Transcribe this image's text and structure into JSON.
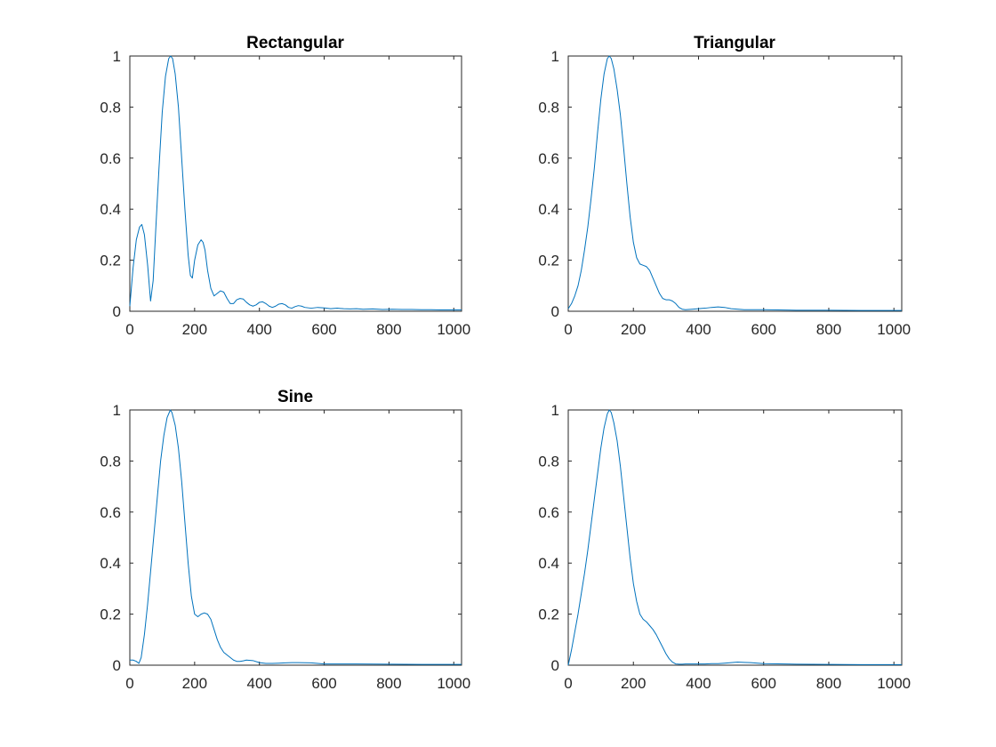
{
  "figure": {
    "background": "#ffffff",
    "line_color": "#0072BD",
    "axis_color": "#262626"
  },
  "chart_data": [
    {
      "type": "line",
      "title": "Rectangular",
      "xlim": [
        0,
        1024
      ],
      "ylim": [
        0,
        1
      ],
      "xticks": [
        0,
        200,
        400,
        600,
        800,
        1000
      ],
      "yticks": [
        0,
        0.2,
        0.4,
        0.6,
        0.8,
        1
      ],
      "xtick_labels": [
        "0",
        "200",
        "400",
        "600",
        "800",
        "1000"
      ],
      "ytick_labels": [
        "0",
        "0.2",
        "0.4",
        "0.6",
        "0.8",
        "1"
      ],
      "grid": false,
      "series": [
        {
          "x": [
            0,
            10,
            20,
            30,
            37,
            45,
            55,
            64,
            72,
            80,
            90,
            100,
            110,
            120,
            126,
            132,
            140,
            150,
            160,
            170,
            180,
            187,
            193,
            200,
            210,
            220,
            226,
            232,
            240,
            250,
            260,
            270,
            280,
            290,
            300,
            310,
            320,
            330,
            340,
            350,
            360,
            370,
            380,
            390,
            400,
            410,
            420,
            430,
            440,
            450,
            460,
            470,
            480,
            490,
            500,
            510,
            520,
            530,
            540,
            560,
            580,
            600,
            620,
            640,
            660,
            680,
            700,
            720,
            750,
            780,
            810,
            840,
            870,
            900,
            930,
            960,
            990,
            1024
          ],
          "y": [
            0.02,
            0.17,
            0.28,
            0.33,
            0.34,
            0.3,
            0.18,
            0.04,
            0.12,
            0.32,
            0.56,
            0.78,
            0.92,
            0.99,
            1.0,
            0.99,
            0.93,
            0.8,
            0.6,
            0.4,
            0.22,
            0.14,
            0.13,
            0.2,
            0.26,
            0.28,
            0.27,
            0.24,
            0.16,
            0.09,
            0.06,
            0.07,
            0.08,
            0.075,
            0.05,
            0.03,
            0.03,
            0.045,
            0.05,
            0.048,
            0.035,
            0.025,
            0.02,
            0.025,
            0.035,
            0.037,
            0.03,
            0.02,
            0.015,
            0.02,
            0.028,
            0.03,
            0.025,
            0.015,
            0.012,
            0.018,
            0.022,
            0.02,
            0.015,
            0.012,
            0.015,
            0.013,
            0.01,
            0.012,
            0.01,
            0.009,
            0.01,
            0.008,
            0.009,
            0.007,
            0.008,
            0.007,
            0.007,
            0.006,
            0.006,
            0.005,
            0.005,
            0.005
          ]
        }
      ]
    },
    {
      "type": "line",
      "title": "Triangular",
      "xlim": [
        0,
        1024
      ],
      "ylim": [
        0,
        1
      ],
      "xticks": [
        0,
        200,
        400,
        600,
        800,
        1000
      ],
      "yticks": [
        0,
        0.2,
        0.4,
        0.6,
        0.8,
        1
      ],
      "xtick_labels": [
        "0",
        "200",
        "400",
        "600",
        "800",
        "1000"
      ],
      "ytick_labels": [
        "0",
        "0.2",
        "0.4",
        "0.6",
        "0.8",
        "1"
      ],
      "grid": false,
      "series": [
        {
          "x": [
            0,
            10,
            20,
            30,
            40,
            50,
            60,
            70,
            80,
            90,
            100,
            110,
            120,
            126,
            132,
            140,
            150,
            160,
            170,
            180,
            190,
            200,
            210,
            220,
            230,
            240,
            250,
            260,
            270,
            280,
            290,
            300,
            310,
            320,
            330,
            340,
            350,
            360,
            380,
            400,
            420,
            440,
            460,
            480,
            500,
            540,
            600,
            700,
            800,
            900,
            1024
          ],
          "y": [
            0.01,
            0.03,
            0.06,
            0.1,
            0.16,
            0.24,
            0.33,
            0.44,
            0.56,
            0.7,
            0.83,
            0.93,
            0.99,
            1.0,
            0.99,
            0.95,
            0.87,
            0.77,
            0.64,
            0.5,
            0.37,
            0.27,
            0.21,
            0.185,
            0.18,
            0.175,
            0.16,
            0.13,
            0.1,
            0.07,
            0.05,
            0.045,
            0.045,
            0.04,
            0.03,
            0.015,
            0.008,
            0.006,
            0.008,
            0.01,
            0.012,
            0.015,
            0.017,
            0.015,
            0.01,
            0.006,
            0.006,
            0.004,
            0.004,
            0.003,
            0.003
          ]
        }
      ]
    },
    {
      "type": "line",
      "title": "Sine",
      "xlim": [
        0,
        1024
      ],
      "ylim": [
        0,
        1
      ],
      "xticks": [
        0,
        200,
        400,
        600,
        800,
        1000
      ],
      "yticks": [
        0,
        0.2,
        0.4,
        0.6,
        0.8,
        1
      ],
      "xtick_labels": [
        "0",
        "200",
        "400",
        "600",
        "800",
        "1000"
      ],
      "ytick_labels": [
        "0",
        "0.2",
        "0.4",
        "0.6",
        "0.8",
        "1"
      ],
      "grid": false,
      "series": [
        {
          "x": [
            0,
            10,
            20,
            28,
            35,
            45,
            55,
            65,
            75,
            85,
            95,
            105,
            115,
            125,
            130,
            140,
            150,
            160,
            170,
            180,
            190,
            200,
            210,
            220,
            230,
            240,
            250,
            260,
            270,
            280,
            290,
            300,
            310,
            320,
            330,
            340,
            350,
            360,
            380,
            400,
            420,
            440,
            460,
            480,
            500,
            520,
            560,
            600,
            700,
            800,
            900,
            1024
          ],
          "y": [
            0.02,
            0.02,
            0.015,
            0.007,
            0.03,
            0.12,
            0.24,
            0.38,
            0.52,
            0.66,
            0.8,
            0.9,
            0.97,
            1.0,
            0.99,
            0.94,
            0.85,
            0.72,
            0.56,
            0.4,
            0.27,
            0.2,
            0.19,
            0.2,
            0.205,
            0.2,
            0.18,
            0.14,
            0.1,
            0.07,
            0.05,
            0.04,
            0.03,
            0.02,
            0.015,
            0.015,
            0.017,
            0.02,
            0.018,
            0.01,
            0.007,
            0.007,
            0.008,
            0.009,
            0.01,
            0.01,
            0.009,
            0.005,
            0.005,
            0.004,
            0.003,
            0.003
          ]
        }
      ]
    },
    {
      "type": "line",
      "title": "",
      "xlim": [
        0,
        1024
      ],
      "ylim": [
        0,
        1
      ],
      "xticks": [
        0,
        200,
        400,
        600,
        800,
        1000
      ],
      "yticks": [
        0,
        0.2,
        0.4,
        0.6,
        0.8,
        1
      ],
      "xtick_labels": [
        "0",
        "200",
        "400",
        "600",
        "800",
        "1000"
      ],
      "ytick_labels": [
        "0",
        "0.2",
        "0.4",
        "0.6",
        "0.8",
        "1"
      ],
      "grid": false,
      "series": [
        {
          "x": [
            0,
            10,
            20,
            30,
            40,
            50,
            60,
            70,
            80,
            90,
            100,
            110,
            120,
            126,
            132,
            140,
            150,
            160,
            170,
            180,
            190,
            200,
            210,
            220,
            230,
            240,
            250,
            260,
            270,
            280,
            290,
            300,
            310,
            320,
            330,
            340,
            350,
            360,
            380,
            400,
            420,
            440,
            460,
            480,
            500,
            520,
            540,
            560,
            600,
            700,
            800,
            900,
            1024
          ],
          "y": [
            0.0,
            0.06,
            0.13,
            0.2,
            0.28,
            0.36,
            0.45,
            0.55,
            0.65,
            0.75,
            0.85,
            0.93,
            0.985,
            1.0,
            0.99,
            0.95,
            0.88,
            0.78,
            0.66,
            0.54,
            0.42,
            0.32,
            0.25,
            0.2,
            0.18,
            0.17,
            0.155,
            0.14,
            0.12,
            0.095,
            0.07,
            0.045,
            0.025,
            0.012,
            0.005,
            0.004,
            0.004,
            0.005,
            0.005,
            0.005,
            0.005,
            0.006,
            0.006,
            0.008,
            0.01,
            0.012,
            0.011,
            0.01,
            0.006,
            0.004,
            0.003,
            0.002,
            0.002
          ]
        }
      ]
    }
  ]
}
